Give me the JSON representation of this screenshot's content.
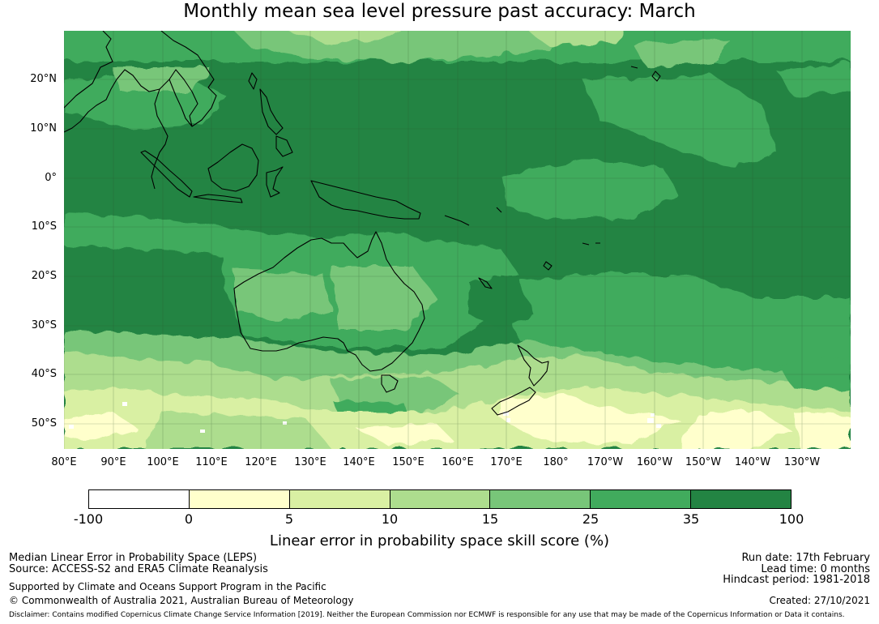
{
  "title": "Monthly mean sea level pressure past accuracy: March",
  "map": {
    "lat_labels": [
      "20°N",
      "10°N",
      "0°",
      "10°S",
      "20°S",
      "30°S",
      "40°S",
      "50°S"
    ],
    "lon_labels": [
      "80°E",
      "90°E",
      "100°E",
      "110°E",
      "120°E",
      "130°E",
      "140°E",
      "150°E",
      "160°E",
      "170°E",
      "180°",
      "170°W",
      "160°W",
      "150°W",
      "140°W",
      "130°W"
    ],
    "colors": {
      "c_neg": "#ffffff",
      "c0": "#ffffcc",
      "c5": "#d9f0a3",
      "c10": "#addd8e",
      "c15": "#78c679",
      "c25": "#41ab5d",
      "c35": "#238443",
      "coast": "#000000",
      "grid": "#2b4d2b"
    }
  },
  "colorbar": {
    "ticks": [
      "-100",
      "0",
      "5",
      "10",
      "15",
      "25",
      "35",
      "100"
    ],
    "label": "Linear error in probability space skill score (%)"
  },
  "footer": {
    "left_line1": "Median Linear Error in Probability Space (LEPS)",
    "left_line2": "Source: ACCESS-S2 and ERA5 Climate Reanalysis",
    "left_line3": "Supported by Climate and Oceans Support Program in the Pacific",
    "left_line4": "© Commonwealth of Australia 2021, Australian Bureau of Meteorology",
    "right_line1": "Run date: 17th February",
    "right_line2": "Lead time: 0 months",
    "right_line3": "Hindcast period: 1981-2018",
    "right_line4": "Created: 27/10/2021",
    "disclaimer": "Disclaimer: Contains modified Copernicus Climate Change Service Information [2019]. Neither the European Commission nor ECMWF is responsible for any use that may be made of the Copernicus Information or Data it contains."
  }
}
